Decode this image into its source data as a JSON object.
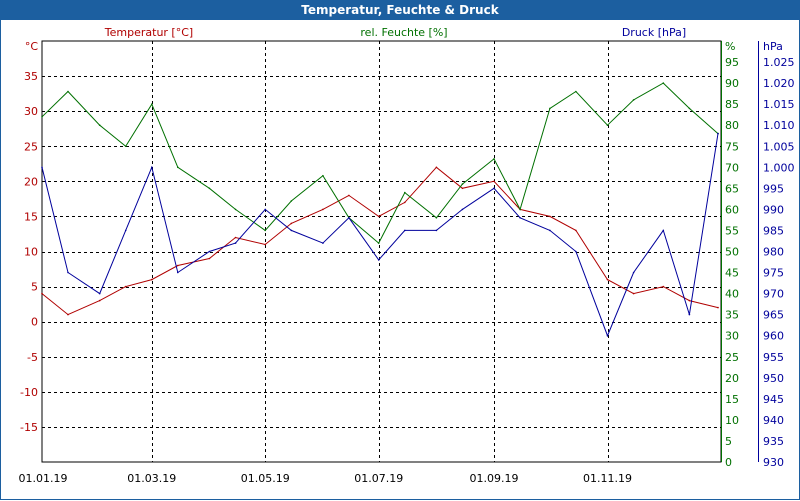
{
  "window": {
    "title": "Temperatur, Feuchte & Druck"
  },
  "colors": {
    "temperature": "#b00000",
    "humidity": "#007000",
    "pressure": "#00009c",
    "grid": "#000000",
    "titlebar": "#1c5fa0"
  },
  "chart_data": {
    "type": "line",
    "title": "Temperatur, Feuchte & Druck",
    "grid": true,
    "x_range": [
      "01.01.19",
      "31.12.19"
    ],
    "x_ticks": [
      "01.01.19",
      "01.03.19",
      "01.05.19",
      "01.07.19",
      "01.09.19",
      "01.11.19"
    ],
    "axes": {
      "temperature": {
        "unit_label": "°C",
        "side": "left",
        "range": [
          -20,
          40
        ],
        "ticks": [
          35,
          30,
          25,
          20,
          15,
          10,
          5,
          0,
          -5,
          -10,
          -15
        ]
      },
      "humidity": {
        "unit_label": "%",
        "side": "right",
        "range": [
          0,
          100
        ],
        "ticks": [
          95,
          90,
          85,
          80,
          75,
          70,
          65,
          60,
          55,
          50,
          45,
          40,
          35,
          30,
          25,
          20,
          15,
          10,
          5,
          0
        ]
      },
      "pressure": {
        "unit_label": "hPa",
        "side": "right",
        "range": [
          930,
          1030
        ],
        "ticks": [
          "1.025",
          "1.020",
          "1.015",
          "1.010",
          "1.005",
          "1.000",
          "995",
          "990",
          "985",
          "980",
          "975",
          "970",
          "965",
          "960",
          "955",
          "950",
          "945",
          "940",
          "935",
          "930"
        ]
      }
    },
    "series": [
      {
        "name": "Temperatur [°C]",
        "axis": "temperature",
        "x": [
          "01.01.19",
          "15.01.19",
          "01.02.19",
          "15.02.19",
          "01.03.19",
          "15.03.19",
          "01.04.19",
          "15.04.19",
          "01.05.19",
          "15.05.19",
          "01.06.19",
          "15.06.19",
          "01.07.19",
          "15.07.19",
          "01.08.19",
          "15.08.19",
          "01.09.19",
          "15.09.19",
          "01.10.19",
          "15.10.19",
          "01.11.19",
          "15.11.19",
          "01.12.19",
          "15.12.19",
          "31.12.19"
        ],
        "y": [
          4,
          1,
          3,
          5,
          6,
          8,
          9,
          12,
          11,
          14,
          16,
          18,
          15,
          17,
          22,
          19,
          20,
          16,
          15,
          13,
          6,
          4,
          5,
          3,
          2
        ]
      },
      {
        "name": "rel. Feuchte [%]",
        "axis": "humidity",
        "x": [
          "01.01.19",
          "15.01.19",
          "01.02.19",
          "15.02.19",
          "01.03.19",
          "15.03.19",
          "01.04.19",
          "15.04.19",
          "01.05.19",
          "15.05.19",
          "01.06.19",
          "15.06.19",
          "01.07.19",
          "15.07.19",
          "01.08.19",
          "15.08.19",
          "01.09.19",
          "15.09.19",
          "01.10.19",
          "15.10.19",
          "01.11.19",
          "15.11.19",
          "01.12.19",
          "15.12.19",
          "31.12.19"
        ],
        "y": [
          82,
          88,
          80,
          75,
          85,
          70,
          65,
          60,
          55,
          62,
          68,
          58,
          52,
          64,
          58,
          66,
          72,
          60,
          84,
          88,
          80,
          86,
          90,
          84,
          78
        ]
      },
      {
        "name": "Druck [hPa]",
        "axis": "pressure",
        "x": [
          "01.01.19",
          "15.01.19",
          "01.02.19",
          "15.02.19",
          "01.03.19",
          "15.03.19",
          "01.04.19",
          "15.04.19",
          "01.05.19",
          "15.05.19",
          "01.06.19",
          "15.06.19",
          "01.07.19",
          "15.07.19",
          "01.08.19",
          "15.08.19",
          "01.09.19",
          "15.09.19",
          "01.10.19",
          "15.10.19",
          "01.11.19",
          "15.11.19",
          "01.12.19",
          "15.12.19",
          "31.12.19"
        ],
        "y": [
          1000,
          975,
          970,
          985,
          1000,
          975,
          980,
          982,
          990,
          985,
          982,
          988,
          978,
          985,
          985,
          990,
          995,
          988,
          985,
          980,
          960,
          975,
          985,
          965,
          1008
        ]
      }
    ]
  }
}
